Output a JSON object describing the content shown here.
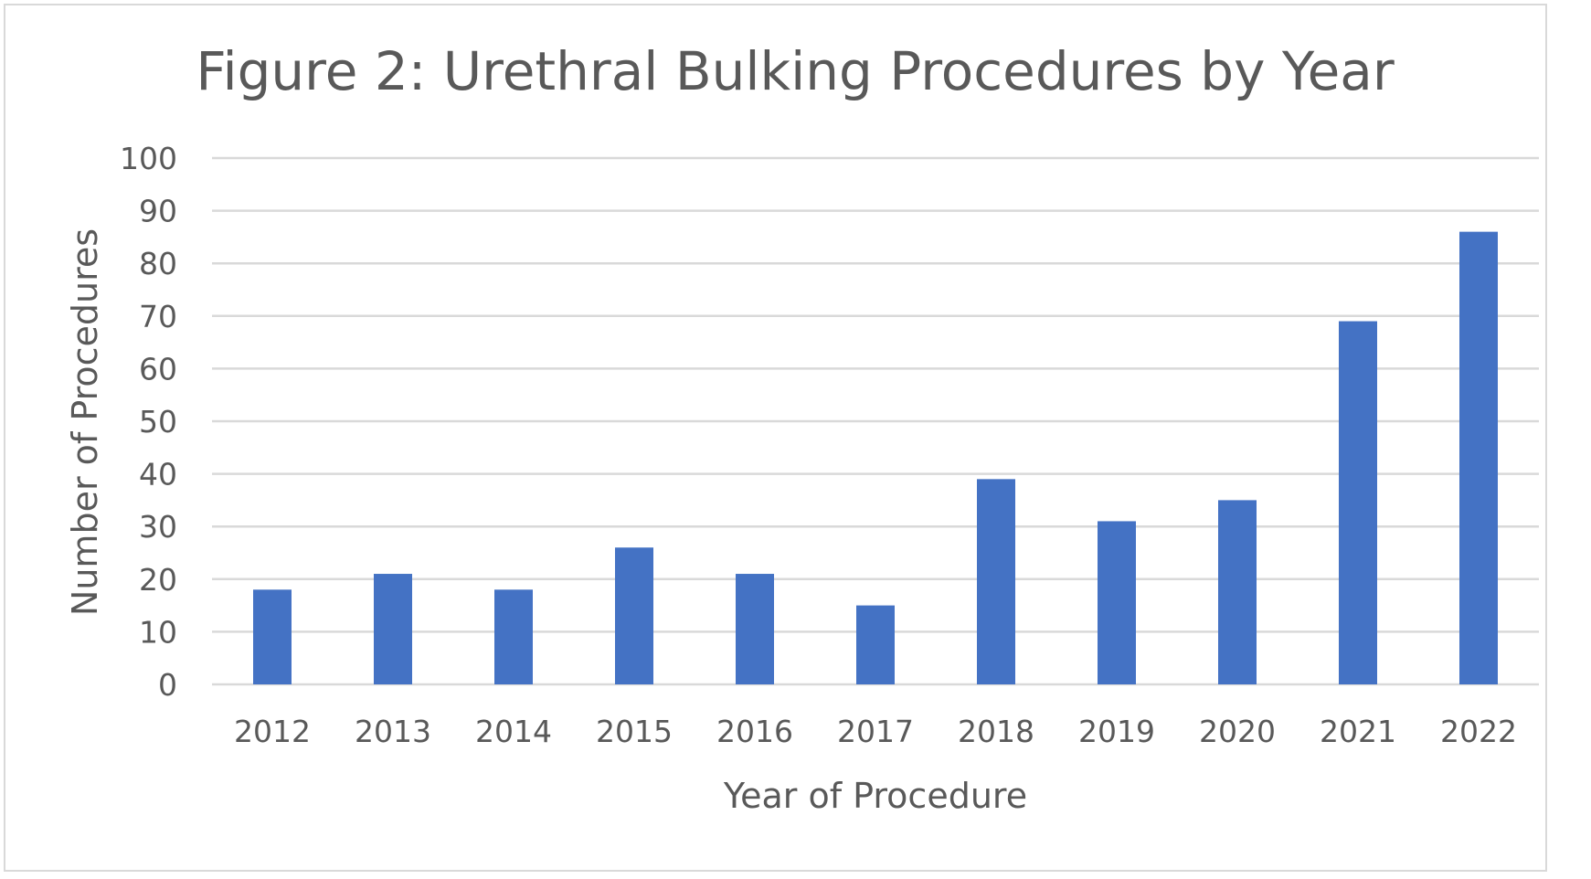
{
  "chart_data": {
    "type": "bar",
    "title": "Figure 2: Urethral Bulking Procedures by Year",
    "xlabel": "Year of Procedure",
    "ylabel": "Number of Procedures",
    "categories": [
      "2012",
      "2013",
      "2014",
      "2015",
      "2016",
      "2017",
      "2018",
      "2019",
      "2020",
      "2021",
      "2022"
    ],
    "values": [
      18,
      21,
      18,
      26,
      21,
      15,
      39,
      31,
      35,
      69,
      86
    ],
    "ylim": [
      0,
      100
    ],
    "yticks": [
      0,
      10,
      20,
      30,
      40,
      50,
      60,
      70,
      80,
      90,
      100
    ],
    "grid": true,
    "legend": "none",
    "bar_color": "#4472c4",
    "grid_color": "#d9d9d9",
    "text_color": "#595959"
  }
}
